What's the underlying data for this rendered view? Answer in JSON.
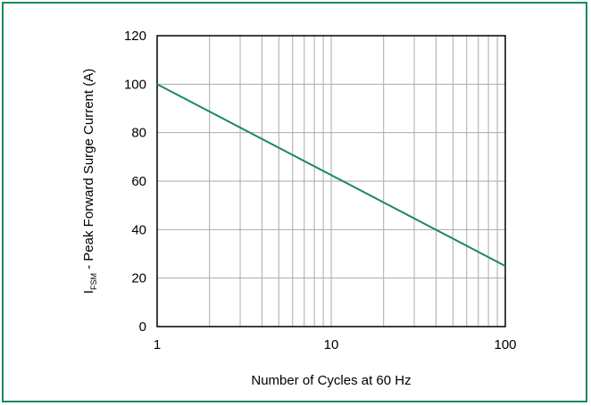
{
  "chart_data": {
    "type": "line",
    "xscale": "log",
    "xlabel": "Number of Cycles at 60 Hz",
    "ylabel": {
      "main": "I",
      "sub": "FSM",
      "rest": " - Peak Forward Surge Current (A)"
    },
    "xlim": [
      1,
      100
    ],
    "ylim": [
      0,
      120
    ],
    "x_ticks": [
      1,
      10,
      100
    ],
    "x_tick_labels": [
      "1",
      "10",
      "100"
    ],
    "y_ticks": [
      0,
      20,
      40,
      60,
      80,
      100,
      120
    ],
    "y_tick_labels": [
      "0",
      "20",
      "40",
      "60",
      "80",
      "100",
      "120"
    ],
    "grid": true,
    "colors": {
      "line": "#1a8a5a",
      "border": "#1a8a5a",
      "grid": "#aaaaaa"
    },
    "series": [
      {
        "x": [
          1,
          100
        ],
        "y": [
          100,
          25
        ]
      }
    ]
  }
}
